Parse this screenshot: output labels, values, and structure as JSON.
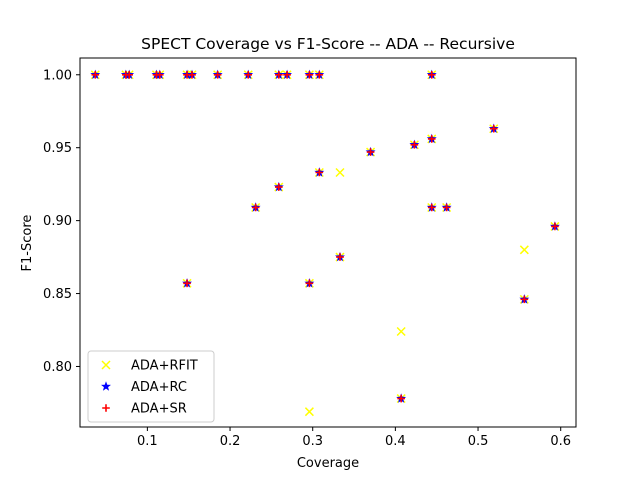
{
  "chart_data": {
    "type": "scatter",
    "title": "SPECT Coverage vs F1-Score -- ADA -- Recursive",
    "xlabel": "Coverage",
    "ylabel": "F1-Score",
    "xlim": [
      0.0185,
      0.6185
    ],
    "ylim": [
      0.7585,
      1.0115
    ],
    "xticks": [
      0.1,
      0.2,
      0.3,
      0.4,
      0.5,
      0.6
    ],
    "xtick_labels": [
      "0.1",
      "0.2",
      "0.3",
      "0.4",
      "0.5",
      "0.6"
    ],
    "yticks": [
      0.8,
      0.85,
      0.9,
      0.95,
      1.0
    ],
    "ytick_labels": [
      "0.80",
      "0.85",
      "0.90",
      "0.95",
      "1.00"
    ],
    "grid": false,
    "legend_position": "lower-left",
    "series": [
      {
        "name": "ADA+RFIT",
        "marker": "x",
        "color": "#ffff00",
        "points": [
          [
            0.037,
            1.0
          ],
          [
            0.074,
            1.0
          ],
          [
            0.078,
            1.0
          ],
          [
            0.111,
            1.0
          ],
          [
            0.115,
            1.0
          ],
          [
            0.148,
            1.0
          ],
          [
            0.154,
            1.0
          ],
          [
            0.185,
            1.0
          ],
          [
            0.222,
            1.0
          ],
          [
            0.259,
            1.0
          ],
          [
            0.269,
            1.0
          ],
          [
            0.296,
            1.0
          ],
          [
            0.308,
            1.0
          ],
          [
            0.444,
            1.0
          ],
          [
            0.148,
            0.857
          ],
          [
            0.231,
            0.909
          ],
          [
            0.259,
            0.923
          ],
          [
            0.296,
            0.857
          ],
          [
            0.296,
            0.769
          ],
          [
            0.308,
            0.933
          ],
          [
            0.333,
            0.875
          ],
          [
            0.333,
            0.933
          ],
          [
            0.37,
            0.947
          ],
          [
            0.407,
            0.824
          ],
          [
            0.407,
            0.778
          ],
          [
            0.423,
            0.952
          ],
          [
            0.444,
            0.956
          ],
          [
            0.444,
            0.909
          ],
          [
            0.462,
            0.909
          ],
          [
            0.519,
            0.963
          ],
          [
            0.556,
            0.88
          ],
          [
            0.556,
            0.846
          ],
          [
            0.593,
            0.896
          ]
        ]
      },
      {
        "name": "ADA+RC",
        "marker": "star",
        "color": "#0000ff",
        "points": [
          [
            0.037,
            1.0
          ],
          [
            0.074,
            1.0
          ],
          [
            0.078,
            1.0
          ],
          [
            0.111,
            1.0
          ],
          [
            0.115,
            1.0
          ],
          [
            0.148,
            1.0
          ],
          [
            0.154,
            1.0
          ],
          [
            0.185,
            1.0
          ],
          [
            0.222,
            1.0
          ],
          [
            0.259,
            1.0
          ],
          [
            0.269,
            1.0
          ],
          [
            0.296,
            1.0
          ],
          [
            0.308,
            1.0
          ],
          [
            0.444,
            1.0
          ],
          [
            0.148,
            0.857
          ],
          [
            0.231,
            0.909
          ],
          [
            0.259,
            0.923
          ],
          [
            0.296,
            0.857
          ],
          [
            0.308,
            0.933
          ],
          [
            0.333,
            0.875
          ],
          [
            0.37,
            0.947
          ],
          [
            0.407,
            0.778
          ],
          [
            0.423,
            0.952
          ],
          [
            0.444,
            0.956
          ],
          [
            0.444,
            0.909
          ],
          [
            0.462,
            0.909
          ],
          [
            0.519,
            0.963
          ],
          [
            0.556,
            0.846
          ],
          [
            0.593,
            0.896
          ]
        ]
      },
      {
        "name": "ADA+SR",
        "marker": "plus",
        "color": "#ff0000",
        "points": [
          [
            0.037,
            1.0
          ],
          [
            0.074,
            1.0
          ],
          [
            0.078,
            1.0
          ],
          [
            0.111,
            1.0
          ],
          [
            0.115,
            1.0
          ],
          [
            0.148,
            1.0
          ],
          [
            0.154,
            1.0
          ],
          [
            0.185,
            1.0
          ],
          [
            0.222,
            1.0
          ],
          [
            0.259,
            1.0
          ],
          [
            0.269,
            1.0
          ],
          [
            0.296,
            1.0
          ],
          [
            0.308,
            1.0
          ],
          [
            0.444,
            1.0
          ],
          [
            0.148,
            0.857
          ],
          [
            0.231,
            0.909
          ],
          [
            0.259,
            0.923
          ],
          [
            0.296,
            0.857
          ],
          [
            0.308,
            0.933
          ],
          [
            0.333,
            0.875
          ],
          [
            0.37,
            0.947
          ],
          [
            0.407,
            0.778
          ],
          [
            0.423,
            0.952
          ],
          [
            0.444,
            0.956
          ],
          [
            0.444,
            0.909
          ],
          [
            0.462,
            0.909
          ],
          [
            0.519,
            0.963
          ],
          [
            0.556,
            0.846
          ],
          [
            0.593,
            0.896
          ]
        ]
      }
    ]
  }
}
